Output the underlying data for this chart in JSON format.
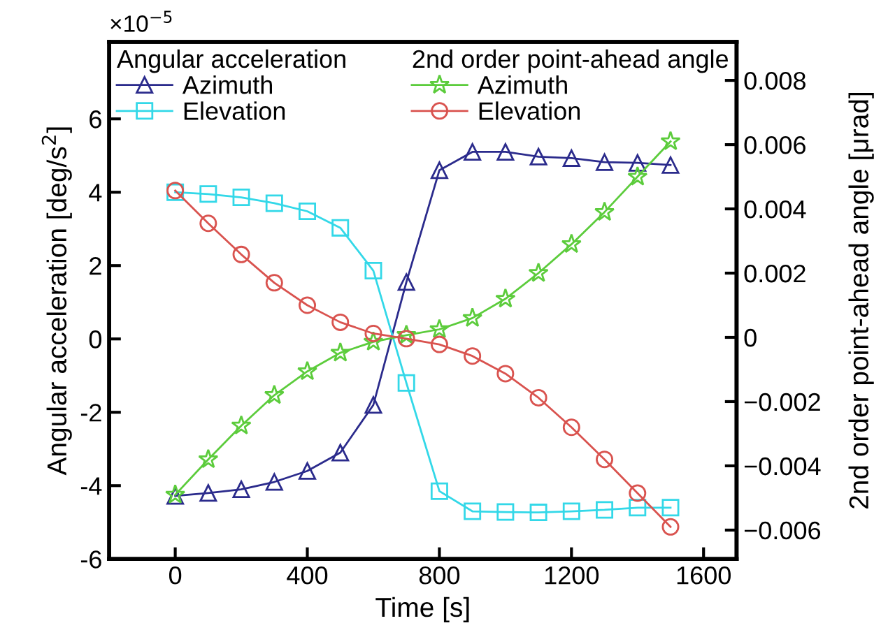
{
  "chart_data": {
    "type": "line",
    "xlabel": "Time [s]",
    "ylabel": "Angular acceleration [deg/s$^{2}$]",
    "y2label": "2nd order point-ahead angle [μrad]",
    "annotations": [
      "Angular acceleration",
      "2nd order point-ahead angle",
      "×10$^{−5}$"
    ],
    "xlim": [
      -200,
      1700
    ],
    "xticks": [
      0,
      400,
      800,
      1200,
      1600
    ],
    "ylim": [
      -6,
      8.1
    ],
    "yticks": [
      -6,
      -4,
      -2,
      0,
      2,
      4,
      6
    ],
    "y2lim": [
      -0.0069,
      0.0092
    ],
    "y2ticks": [
      {
        "value": -0.006,
        "label": "−0.006"
      },
      {
        "value": -0.004,
        "label": "−0.004"
      },
      {
        "value": -0.002,
        "label": "−0.002"
      },
      0,
      0.002,
      0.004,
      0.006,
      0.008
    ],
    "grid": false,
    "legend": "top",
    "x": [
      0,
      100,
      200,
      300,
      400,
      500,
      600,
      700,
      800,
      900,
      1000,
      1100,
      1200,
      1300,
      1400,
      1500
    ],
    "series": [
      {
        "name": "Azimuth",
        "color": "#2b2b8c",
        "marker": "triangle",
        "values": [
          -4.28,
          -4.2,
          -4.1,
          -3.9,
          -3.6,
          -3.1,
          -1.8,
          1.55,
          4.6,
          5.1,
          5.1,
          4.97,
          4.93,
          4.82,
          4.8,
          4.74
        ]
      },
      {
        "name": "Elevation",
        "color": "#33d8e8",
        "marker": "square",
        "values": [
          4.0,
          3.95,
          3.86,
          3.7,
          3.48,
          3.03,
          1.86,
          -1.2,
          -4.15,
          -4.7,
          -4.72,
          -4.73,
          -4.7,
          -4.66,
          -4.6,
          -4.6
        ]
      },
      {
        "name": "Azimuth",
        "color": "#5ccc3c",
        "marker": "star",
        "axis": "y2",
        "values": [
          -0.0049,
          -0.0038,
          -0.00275,
          -0.0018,
          -0.00106,
          -0.00048,
          -0.00014,
          7e-05,
          0.00025,
          0.0006,
          0.0012,
          0.002,
          0.0029,
          0.0039,
          0.005,
          0.0061
        ]
      },
      {
        "name": "Elevation",
        "color": "#d9534f",
        "marker": "circle",
        "axis": "y2",
        "values": [
          0.00457,
          0.00355,
          0.00258,
          0.0017,
          0.001,
          0.00047,
          0.00012,
          -4e-05,
          -0.00022,
          -0.00058,
          -0.00113,
          -0.00188,
          -0.0028,
          -0.0038,
          -0.00485,
          -0.0059
        ]
      }
    ]
  }
}
